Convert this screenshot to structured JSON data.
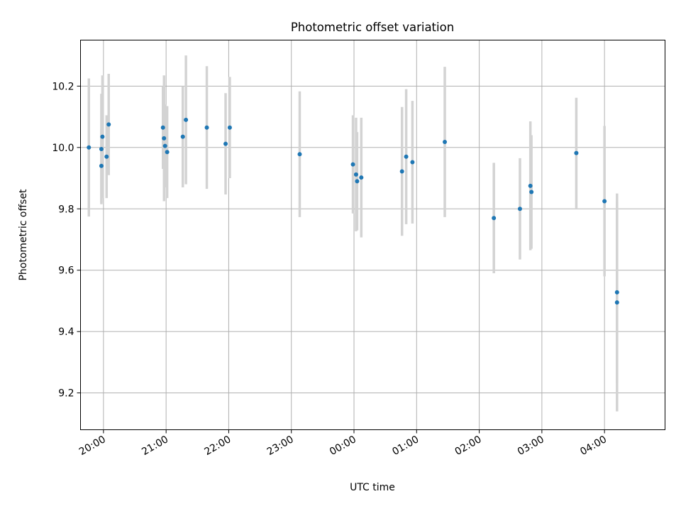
{
  "chart_data": {
    "type": "scatter",
    "title": "Photometric offset variation",
    "xlabel": "UTC time",
    "ylabel": "Photometric offset",
    "x_format": "HH:MM",
    "xticks": [
      "20:00",
      "21:00",
      "22:00",
      "23:00",
      "00:00",
      "01:00",
      "02:00",
      "03:00",
      "04:00"
    ],
    "xlim": [
      "19:38",
      "04:58"
    ],
    "yticks": [
      9.2,
      9.4,
      9.6,
      9.8,
      10.0,
      10.2
    ],
    "ylim": [
      9.08,
      10.35
    ],
    "grid": true,
    "error_bar_color": "#d3d3d3",
    "point_color": "#1f77b4",
    "points": [
      {
        "x": "19:46",
        "y": 10.0,
        "err": 0.225
      },
      {
        "x": "19:58",
        "y": 9.94,
        "err": 0.12
      },
      {
        "x": "19:58",
        "y": 9.995,
        "err": 0.18
      },
      {
        "x": "19:59",
        "y": 10.035,
        "err": 0.2
      },
      {
        "x": "20:03",
        "y": 9.97,
        "err": 0.135
      },
      {
        "x": "20:05",
        "y": 10.075,
        "err": 0.165
      },
      {
        "x": "20:57",
        "y": 10.065,
        "err": 0.135
      },
      {
        "x": "20:58",
        "y": 10.03,
        "err": 0.205
      },
      {
        "x": "20:59",
        "y": 10.005,
        "err": 0.135
      },
      {
        "x": "21:01",
        "y": 9.985,
        "err": 0.15
      },
      {
        "x": "21:16",
        "y": 10.035,
        "err": 0.165
      },
      {
        "x": "21:19",
        "y": 10.09,
        "err": 0.21
      },
      {
        "x": "21:39",
        "y": 10.065,
        "err": 0.2
      },
      {
        "x": "21:57",
        "y": 10.012,
        "err": 0.165
      },
      {
        "x": "22:01",
        "y": 10.065,
        "err": 0.165
      },
      {
        "x": "23:08",
        "y": 9.978,
        "err": 0.205
      },
      {
        "x": "23:59",
        "y": 9.945,
        "err": 0.16
      },
      {
        "x": "00:03",
        "y": 9.89,
        "err": 0.16
      },
      {
        "x": "00:02",
        "y": 9.912,
        "err": 0.185
      },
      {
        "x": "00:07",
        "y": 9.902,
        "err": 0.195
      },
      {
        "x": "00:46",
        "y": 9.922,
        "err": 0.21
      },
      {
        "x": "00:50",
        "y": 9.97,
        "err": 0.22
      },
      {
        "x": "00:56",
        "y": 9.952,
        "err": 0.2
      },
      {
        "x": "01:27",
        "y": 10.018,
        "err": 0.245
      },
      {
        "x": "02:14",
        "y": 9.77,
        "err": 0.18
      },
      {
        "x": "02:39",
        "y": 9.8,
        "err": 0.165
      },
      {
        "x": "02:49",
        "y": 9.875,
        "err": 0.21
      },
      {
        "x": "02:50",
        "y": 9.855,
        "err": 0.185
      },
      {
        "x": "03:33",
        "y": 9.982,
        "err": 0.18
      },
      {
        "x": "04:00",
        "y": 9.825,
        "err": 0.245
      },
      {
        "x": "04:12",
        "y": 9.528,
        "err": 0.295
      },
      {
        "x": "04:12",
        "y": 9.495,
        "err": 0.355
      }
    ]
  }
}
